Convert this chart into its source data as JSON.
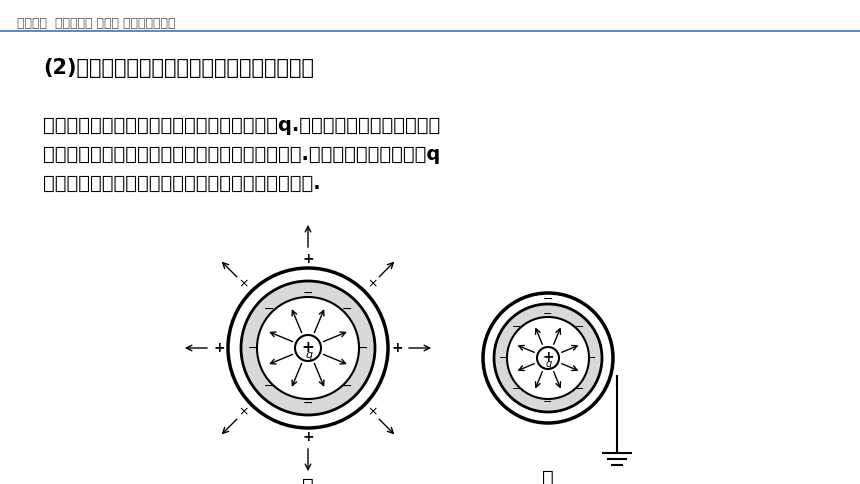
{
  "bg_color": "#ffffff",
  "header_text": "高中物理  必修第三册 第九章 静电场及其应用",
  "header_color": "#555555",
  "header_fontsize": 9,
  "divider_color": "#4472c4",
  "title_text": "(2)接地的封闭导体壳，内部电场对外部没影响",
  "title_fontsize": 15,
  "body_text": "如一封闭的导体壳内部空间某点有一点电荷＋q.由于静电感应，导体壳内外\n表面感应出等量的异种电荷，其电场线如图甲所示.当把导体壳接地后，＋q\n在壳内的电场对壳外空间就没有影响了，如图乙所示.",
  "body_fontsize": 14,
  "label_jia": "甲",
  "label_yi": "乙"
}
